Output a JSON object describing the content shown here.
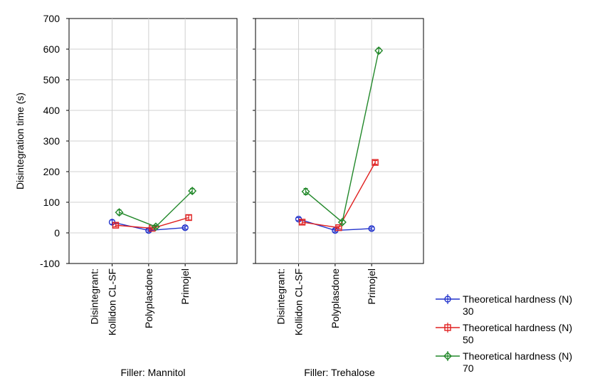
{
  "chart_data": {
    "type": "line",
    "ylabel": "Disintegration time (s)",
    "ylim": [
      -100,
      700
    ],
    "yticks": [
      -100,
      0,
      100,
      200,
      300,
      400,
      500,
      600,
      700
    ],
    "x_axis_prefix": "Disintegrant:",
    "categories": [
      "Kollidon CL-SF",
      "Polyplasdone",
      "Primojel"
    ],
    "grid": true,
    "legend_position": "bottom-right",
    "legend_title": "Theoretical hardness (N)",
    "panels": [
      {
        "label": "Filler: Mannitol",
        "series": [
          {
            "name": "30",
            "color": "#2233cc",
            "marker": "circle",
            "values": [
              35,
              8,
              17
            ],
            "errors": [
              7,
              5,
              5
            ]
          },
          {
            "name": "50",
            "color": "#e02020",
            "marker": "square",
            "values": [
              25,
              15,
              50
            ],
            "errors": [
              5,
              4,
              8
            ]
          },
          {
            "name": "70",
            "color": "#22882a",
            "marker": "diamond",
            "values": [
              67,
              20,
              137
            ],
            "errors": [
              8,
              5,
              8
            ]
          }
        ]
      },
      {
        "label": "Filler: Trehalose",
        "series": [
          {
            "name": "30",
            "color": "#2233cc",
            "marker": "circle",
            "values": [
              45,
              8,
              14
            ],
            "errors": [
              5,
              5,
              5
            ]
          },
          {
            "name": "50",
            "color": "#e02020",
            "marker": "square",
            "values": [
              35,
              17,
              230
            ],
            "errors": [
              6,
              4,
              6
            ]
          },
          {
            "name": "70",
            "color": "#22882a",
            "marker": "diamond",
            "values": [
              135,
              35,
              595
            ],
            "errors": [
              10,
              6,
              8
            ]
          }
        ]
      }
    ]
  }
}
